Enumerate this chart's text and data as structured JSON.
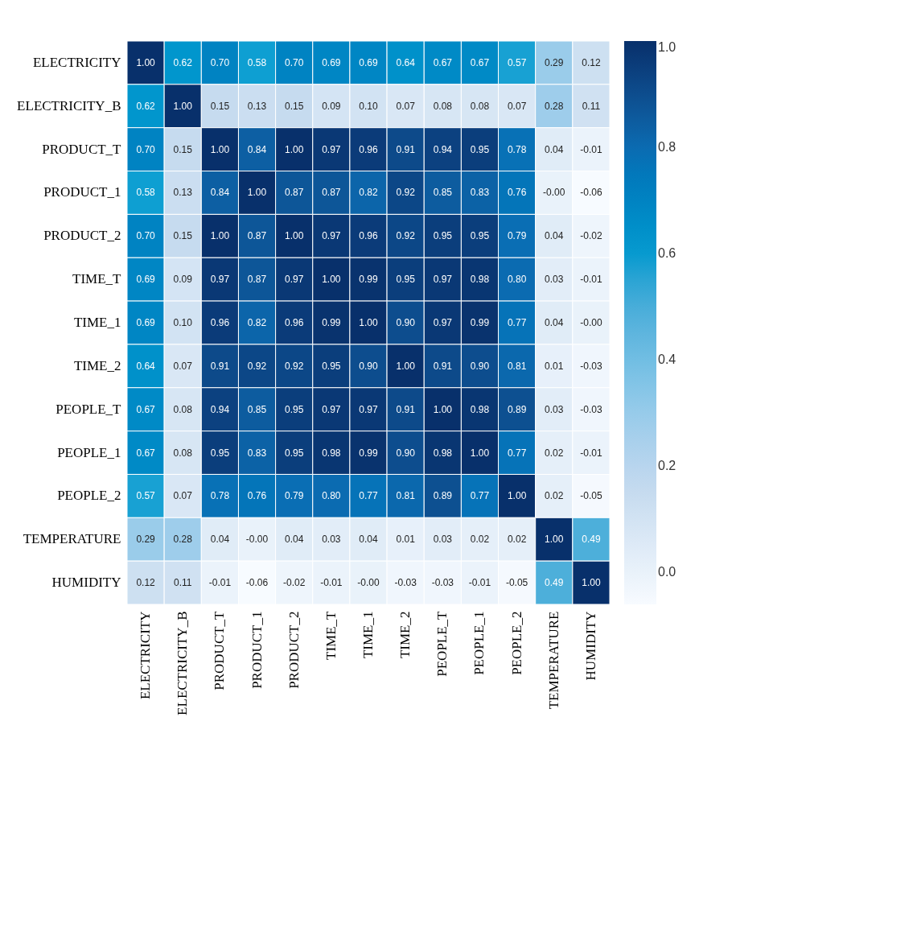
{
  "chart_data": {
    "type": "heatmap",
    "categories": [
      "ELECTRICITY",
      "ELECTRICITY_B",
      "PRODUCT_T",
      "PRODUCT_1",
      "PRODUCT_2",
      "TIME_T",
      "TIME_1",
      "TIME_2",
      "PEOPLE_T",
      "PEOPLE_1",
      "PEOPLE_2",
      "TEMPERATURE",
      "HUMIDITY"
    ],
    "y_categories": [
      "ELECTRICITY",
      "ELECTRICITY_B",
      "PRODUCT_T",
      "PRODUCT_1",
      "PRODUCT_2",
      "TIME_T",
      "TIME_1",
      "TIME_2",
      "PEOPLE_T",
      "PEOPLE_1",
      "PEOPLE_2",
      "TEMPERATURE",
      "HUMIDITY"
    ],
    "cells": [
      [
        1.0,
        0.62,
        0.7,
        0.58,
        0.7,
        0.69,
        0.69,
        0.64,
        0.67,
        0.67,
        0.57,
        0.29,
        0.12
      ],
      [
        0.62,
        1.0,
        0.15,
        0.13,
        0.15,
        0.09,
        0.1,
        0.07,
        0.08,
        0.08,
        0.07,
        0.28,
        0.11
      ],
      [
        0.7,
        0.15,
        1.0,
        0.84,
        1.0,
        0.97,
        0.96,
        0.91,
        0.94,
        0.95,
        0.78,
        0.04,
        -0.01
      ],
      [
        0.58,
        0.13,
        0.84,
        1.0,
        0.87,
        0.87,
        0.82,
        0.92,
        0.85,
        0.83,
        0.76,
        0.0,
        -0.06
      ],
      [
        0.7,
        0.15,
        1.0,
        0.87,
        1.0,
        0.97,
        0.96,
        0.92,
        0.95,
        0.95,
        0.79,
        0.04,
        -0.02
      ],
      [
        0.69,
        0.09,
        0.97,
        0.87,
        0.97,
        1.0,
        0.99,
        0.95,
        0.97,
        0.98,
        0.8,
        0.03,
        -0.01
      ],
      [
        0.69,
        0.1,
        0.96,
        0.82,
        0.96,
        0.99,
        1.0,
        0.9,
        0.97,
        0.99,
        0.77,
        0.04,
        0.0
      ],
      [
        0.64,
        0.07,
        0.91,
        0.92,
        0.92,
        0.95,
        0.9,
        1.0,
        0.91,
        0.9,
        0.81,
        0.01,
        -0.03
      ],
      [
        0.67,
        0.08,
        0.94,
        0.85,
        0.95,
        0.97,
        0.97,
        0.91,
        1.0,
        0.98,
        0.89,
        0.03,
        -0.03
      ],
      [
        0.67,
        0.08,
        0.95,
        0.83,
        0.95,
        0.98,
        0.99,
        0.9,
        0.98,
        1.0,
        0.77,
        0.02,
        -0.01
      ],
      [
        0.57,
        0.07,
        0.78,
        0.76,
        0.79,
        0.8,
        0.77,
        0.81,
        0.89,
        0.77,
        1.0,
        0.02,
        -0.05
      ],
      [
        0.29,
        0.28,
        0.04,
        0.0,
        0.04,
        0.03,
        0.04,
        0.01,
        0.03,
        0.02,
        0.02,
        1.0,
        0.49
      ],
      [
        0.12,
        0.11,
        -0.01,
        -0.06,
        -0.02,
        -0.01,
        0.0,
        -0.03,
        -0.03,
        -0.01,
        -0.05,
        0.49,
        1.0
      ]
    ],
    "cell_labels": [
      [
        "1.00",
        "0.62",
        "0.70",
        "0.58",
        "0.70",
        "0.69",
        "0.69",
        "0.64",
        "0.67",
        "0.67",
        "0.57",
        "0.29",
        "0.12"
      ],
      [
        "0.62",
        "1.00",
        "0.15",
        "0.13",
        "0.15",
        "0.09",
        "0.10",
        "0.07",
        "0.08",
        "0.08",
        "0.07",
        "0.28",
        "0.11"
      ],
      [
        "0.70",
        "0.15",
        "1.00",
        "0.84",
        "1.00",
        "0.97",
        "0.96",
        "0.91",
        "0.94",
        "0.95",
        "0.78",
        "0.04",
        "-0.01"
      ],
      [
        "0.58",
        "0.13",
        "0.84",
        "1.00",
        "0.87",
        "0.87",
        "0.82",
        "0.92",
        "0.85",
        "0.83",
        "0.76",
        "-0.00",
        "-0.06"
      ],
      [
        "0.70",
        "0.15",
        "1.00",
        "0.87",
        "1.00",
        "0.97",
        "0.96",
        "0.92",
        "0.95",
        "0.95",
        "0.79",
        "0.04",
        "-0.02"
      ],
      [
        "0.69",
        "0.09",
        "0.97",
        "0.87",
        "0.97",
        "1.00",
        "0.99",
        "0.95",
        "0.97",
        "0.98",
        "0.80",
        "0.03",
        "-0.01"
      ],
      [
        "0.69",
        "0.10",
        "0.96",
        "0.82",
        "0.96",
        "0.99",
        "1.00",
        "0.90",
        "0.97",
        "0.99",
        "0.77",
        "0.04",
        "-0.00"
      ],
      [
        "0.64",
        "0.07",
        "0.91",
        "0.92",
        "0.92",
        "0.95",
        "0.90",
        "1.00",
        "0.91",
        "0.90",
        "0.81",
        "0.01",
        "-0.03"
      ],
      [
        "0.67",
        "0.08",
        "0.94",
        "0.85",
        "0.95",
        "0.97",
        "0.97",
        "0.91",
        "1.00",
        "0.98",
        "0.89",
        "0.03",
        "-0.03"
      ],
      [
        "0.67",
        "0.08",
        "0.95",
        "0.83",
        "0.95",
        "0.98",
        "0.99",
        "0.90",
        "0.98",
        "1.00",
        "0.77",
        "0.02",
        "-0.01"
      ],
      [
        "0.57",
        "0.07",
        "0.78",
        "0.76",
        "0.79",
        "0.80",
        "0.77",
        "0.81",
        "0.89",
        "0.77",
        "1.00",
        "0.02",
        "-0.05"
      ],
      [
        "0.29",
        "0.28",
        "0.04",
        "-0.00",
        "0.04",
        "0.03",
        "0.04",
        "0.01",
        "0.03",
        "0.02",
        "0.02",
        "1.00",
        "0.49"
      ],
      [
        "0.12",
        "0.11",
        "-0.01",
        "-0.06",
        "-0.02",
        "-0.01",
        "-0.00",
        "-0.03",
        "-0.03",
        "-0.01",
        "-0.05",
        "0.49",
        "1.00"
      ]
    ],
    "clim": [
      -0.06,
      1.0
    ],
    "cticks": [
      {
        "value": 0.0,
        "label": "0.0"
      },
      {
        "value": 0.2,
        "label": "0.2"
      },
      {
        "value": 0.4,
        "label": "0.4"
      },
      {
        "value": 0.6,
        "label": "0.6"
      },
      {
        "value": 0.8,
        "label": "0.8"
      },
      {
        "value": 1.0,
        "label": "1.0"
      }
    ]
  }
}
